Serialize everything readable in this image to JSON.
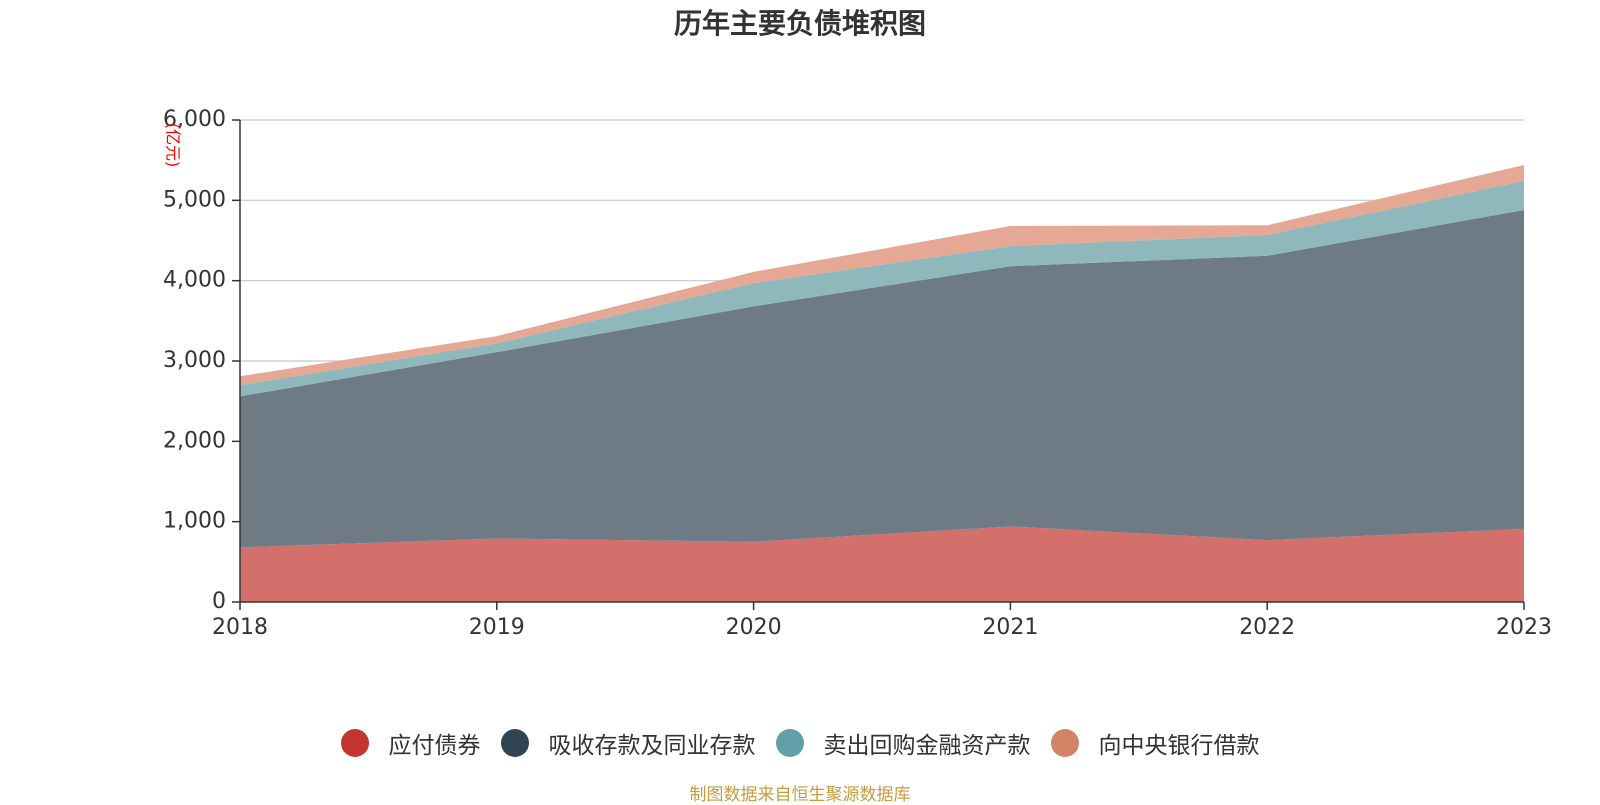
{
  "title": "历年主要负债堆积图",
  "source_note": "制图数据来自恒生聚源数据库",
  "chart_data": {
    "type": "area",
    "stacked": true,
    "title": "历年主要负债堆积图",
    "unit": "(亿元)",
    "x": [
      "2018",
      "2019",
      "2020",
      "2021",
      "2022",
      "2023"
    ],
    "ylim": [
      0,
      6000
    ],
    "yticks": [
      0,
      1000,
      2000,
      3000,
      4000,
      5000,
      6000
    ],
    "ytick_labels": [
      "0",
      "1,000",
      "2,000",
      "3,000",
      "4,000",
      "5,000",
      "6,000"
    ],
    "grid": true,
    "legend_position": "bottom",
    "series": [
      {
        "name": "应付债券",
        "color": "#c23531",
        "fill": "#d4706c",
        "values": [
          680,
          790,
          750,
          940,
          770,
          910
        ]
      },
      {
        "name": "吸收存款及同业存款",
        "color": "#2f4554",
        "fill": "#6e7b85",
        "values": [
          1880,
          2320,
          2930,
          3240,
          3540,
          3970
        ]
      },
      {
        "name": "卖出回购金融资产款",
        "color": "#61a0a8",
        "fill": "#8fb8bd",
        "values": [
          140,
          110,
          290,
          250,
          260,
          360
        ]
      },
      {
        "name": "向中央银行借款",
        "color": "#d48265",
        "fill": "#e4a895",
        "values": [
          110,
          90,
          140,
          250,
          120,
          200
        ]
      }
    ]
  }
}
